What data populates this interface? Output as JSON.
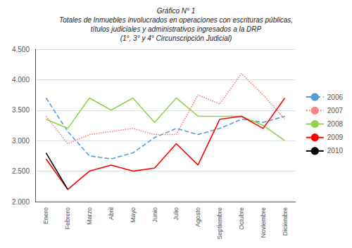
{
  "chart_data": {
    "type": "line",
    "title": "Gráfico N° 1\nTotales de Inmuebles involucrados en operaciones con escrituras públicas,\ntítulos judiciales y administrativos ingresados a la DRP\n(1°, 3° y 4° Circunscripción Judicial)",
    "categories": [
      "Enero",
      "Febrero",
      "Marzo",
      "Abril",
      "Mayo",
      "Junio",
      "Julio",
      "Agosto",
      "Septiembre",
      "Octubre",
      "Noviembre",
      "Diciembre"
    ],
    "series": [
      {
        "name": "2006",
        "color": "#5B9BD5",
        "line_style": "dashed",
        "values": [
          3700,
          3150,
          2750,
          2700,
          2800,
          3050,
          3200,
          3100,
          3200,
          3350,
          3300,
          3400
        ]
      },
      {
        "name": "2007",
        "color": "#FF8080",
        "line_style": "dotted",
        "values": [
          3400,
          2950,
          3100,
          3150,
          3200,
          3100,
          3100,
          3750,
          3600,
          4100,
          3750,
          3350
        ]
      },
      {
        "name": "2008",
        "color": "#92D050",
        "line_style": "solid",
        "values": [
          3350,
          3200,
          3700,
          3500,
          3700,
          3300,
          3700,
          3400,
          3400,
          3400,
          3250,
          3000
        ]
      },
      {
        "name": "2009",
        "color": "#FF0000",
        "line_style": "solid",
        "values": [
          2700,
          2200,
          2500,
          2600,
          2500,
          2550,
          2950,
          2600,
          3350,
          3400,
          3200,
          3700
        ]
      },
      {
        "name": "2010",
        "color": "#000000",
        "line_style": "solid",
        "values": [
          2800,
          2200,
          null,
          null,
          null,
          null,
          null,
          null,
          null,
          null,
          null,
          null
        ]
      }
    ],
    "ylim": [
      2000,
      4500
    ],
    "yticks": [
      {
        "value": 2000,
        "label": "2.000"
      },
      {
        "value": 2500,
        "label": "2.500"
      },
      {
        "value": 3000,
        "label": "3.000"
      },
      {
        "value": 3500,
        "label": "3.500"
      },
      {
        "value": 4000,
        "label": "4.000"
      },
      {
        "value": 4500,
        "label": "4.500"
      }
    ],
    "grid": true,
    "legend": "right"
  }
}
